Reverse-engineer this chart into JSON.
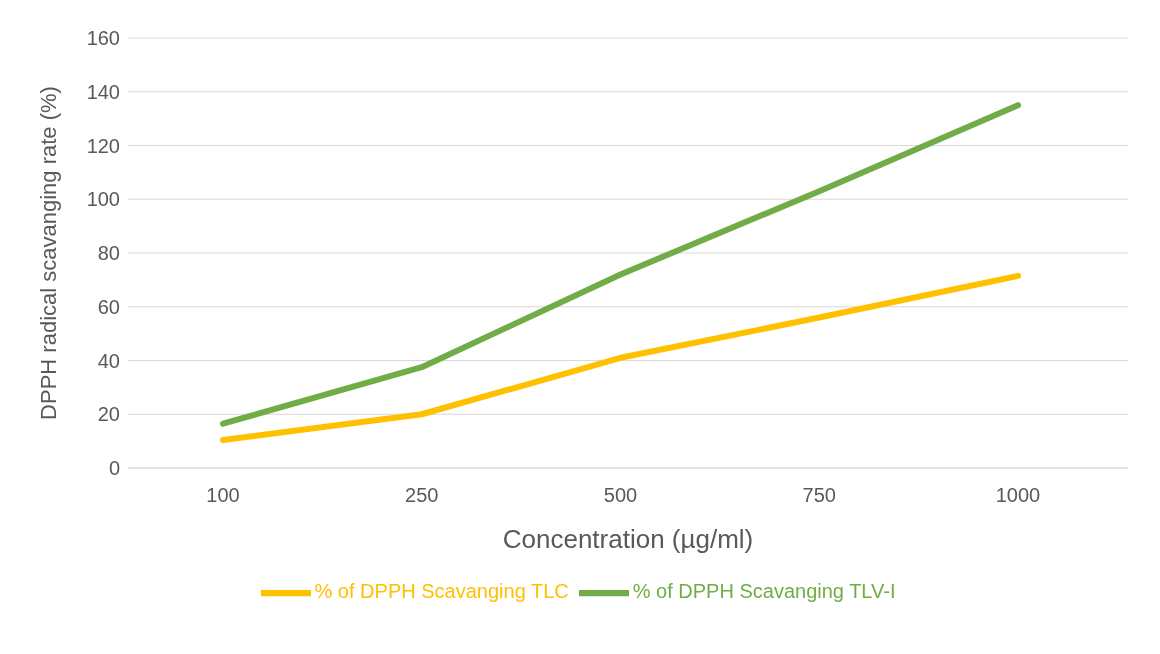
{
  "chart_data": {
    "type": "line",
    "xlabel": "Concentration (µg/ml)",
    "ylabel": "DPPH radical scavanging rate (%)",
    "categories": [
      "100",
      "250",
      "500",
      "750",
      "1000"
    ],
    "series": [
      {
        "name": "% of DPPH Scavanging TLC",
        "color": "#ffc000",
        "values": [
          10.4,
          20,
          41,
          56,
          71.5
        ]
      },
      {
        "name": "% of DPPH Scavanging TLV-I",
        "color": "#70ad47",
        "values": [
          16.5,
          37.5,
          72,
          103,
          135
        ]
      }
    ],
    "ylim": [
      0,
      160
    ],
    "yticks": [
      0,
      20,
      40,
      60,
      80,
      100,
      120,
      140,
      160
    ],
    "grid": "y",
    "legend": "bottom",
    "marker": "none",
    "line_style": "solid"
  }
}
